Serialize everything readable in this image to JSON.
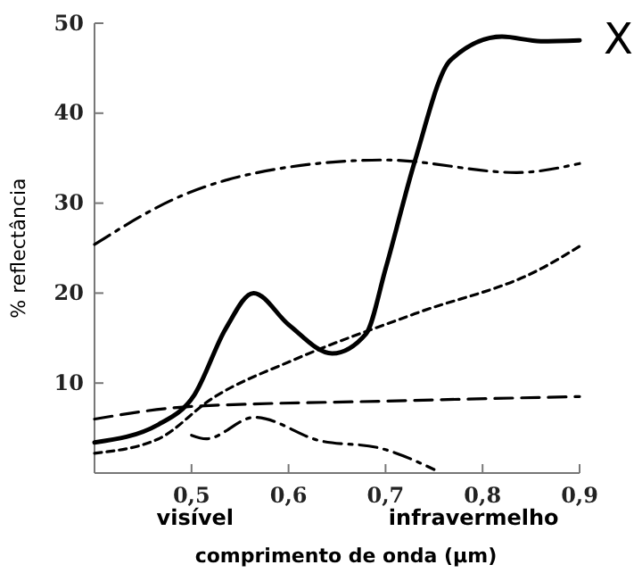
{
  "chart_data": {
    "type": "line",
    "xlabel": "comprimento de onda (μm)",
    "ylabel": "% reflectância",
    "xlim": [
      0.4,
      0.9
    ],
    "ylim": [
      0,
      50
    ],
    "xticks": [
      {
        "value": 0.5,
        "label": "0,5"
      },
      {
        "value": 0.6,
        "label": "0,6"
      },
      {
        "value": 0.7,
        "label": "0,7"
      },
      {
        "value": 0.8,
        "label": "0,8"
      },
      {
        "value": 0.9,
        "label": "0,9"
      }
    ],
    "yticks": [
      10,
      20,
      30,
      40,
      50
    ],
    "marker": "none",
    "annotations": [
      "visível",
      "infravermelho",
      "X"
    ],
    "series": [
      {
        "color": "#000000",
        "line_style": "solid",
        "x": [
          0.4,
          0.466,
          0.503,
          0.535,
          0.564,
          0.6,
          0.645,
          0.68,
          0.7,
          0.73,
          0.767,
          0.82,
          0.86,
          0.9
        ],
        "values": [
          3.4,
          5.4,
          8.7,
          16,
          20,
          16.5,
          13.3,
          15.5,
          22.7,
          34.6,
          45.9,
          48.5,
          48,
          48.1
        ]
      },
      {
        "color": "#000000",
        "line_style": "dashdot",
        "x": [
          0.4,
          0.485,
          0.6,
          0.7,
          0.835,
          0.9
        ],
        "values": [
          25.4,
          30.6,
          34,
          34.8,
          33.4,
          34.4
        ]
      },
      {
        "color": "#000000",
        "line_style": "dotted",
        "x": [
          0.4,
          0.466,
          0.52,
          0.608,
          0.73,
          0.86,
          0.9
        ],
        "values": [
          2.2,
          3.8,
          8.2,
          12.7,
          17.7,
          22.7,
          25.2
        ]
      },
      {
        "color": "#000000",
        "line_style": "dashed",
        "x": [
          0.4,
          0.5,
          0.7,
          0.9
        ],
        "values": [
          6.0,
          7.4,
          8.0,
          8.5
        ]
      },
      {
        "color": "#000000",
        "line_style": "dashdot",
        "x": [
          0.5,
          0.515,
          0.565,
          0.632,
          0.693,
          0.75
        ],
        "values": [
          4.2,
          3.8,
          6.2,
          3.6,
          2.8,
          0.4
        ]
      }
    ]
  }
}
